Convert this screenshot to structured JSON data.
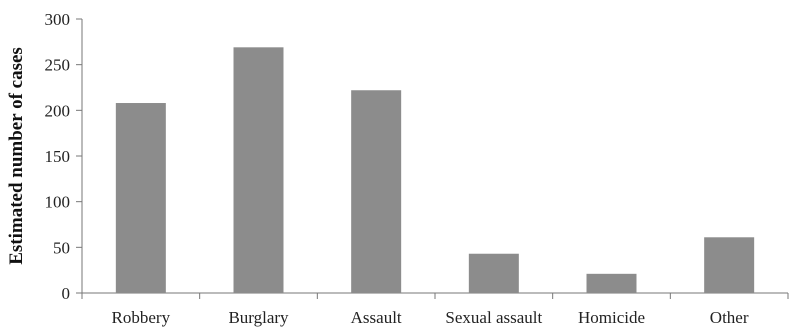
{
  "chart_data": {
    "type": "bar",
    "title": "",
    "xlabel": "",
    "ylabel": "Estimated number of cases",
    "categories": [
      "Robbery",
      "Burglary",
      "Assault",
      "Sexual assault",
      "Homicide",
      "Other"
    ],
    "values": [
      208,
      269,
      222,
      43,
      21,
      61
    ],
    "ylim": [
      0,
      300
    ],
    "yticks": [
      "0",
      "50",
      "100",
      "150",
      "200",
      "250",
      "300"
    ],
    "grid": false,
    "legend": "none",
    "colors": {
      "bar": "#8c8c8c",
      "axis": "#777777"
    }
  }
}
